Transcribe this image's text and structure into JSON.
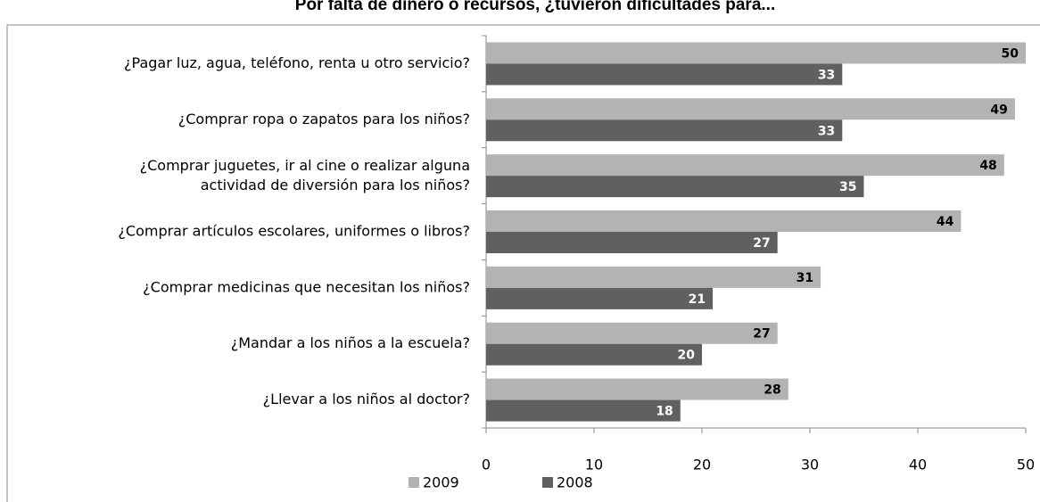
{
  "chart_data": {
    "type": "bar",
    "orientation": "horizontal",
    "title": "Por falta de dinero o recursos, ¿tuvieron dificultades para...",
    "categories": [
      "¿Pagar luz, agua, teléfono, renta u otro servicio?",
      "¿Comprar ropa o zapatos para los niños?",
      "¿Comprar juguetes, ir al cine o realizar alguna\nactividad de diversión para los niños?",
      "¿Comprar artículos escolares, uniformes o libros?",
      "¿Comprar medicinas que necesitan los niños?",
      "¿Mandar a los niños a la escuela?",
      "¿Llevar a los niños al doctor?"
    ],
    "series": [
      {
        "name": "2009",
        "color": "#b3b3b3",
        "values": [
          50,
          49,
          48,
          44,
          31,
          27,
          28
        ]
      },
      {
        "name": "2008",
        "color": "#606060",
        "values": [
          33,
          33,
          35,
          27,
          21,
          20,
          18
        ]
      }
    ],
    "xlim": [
      0,
      50
    ],
    "xticks": [
      0,
      10,
      20,
      30,
      40,
      50
    ],
    "legend": "bottom"
  }
}
